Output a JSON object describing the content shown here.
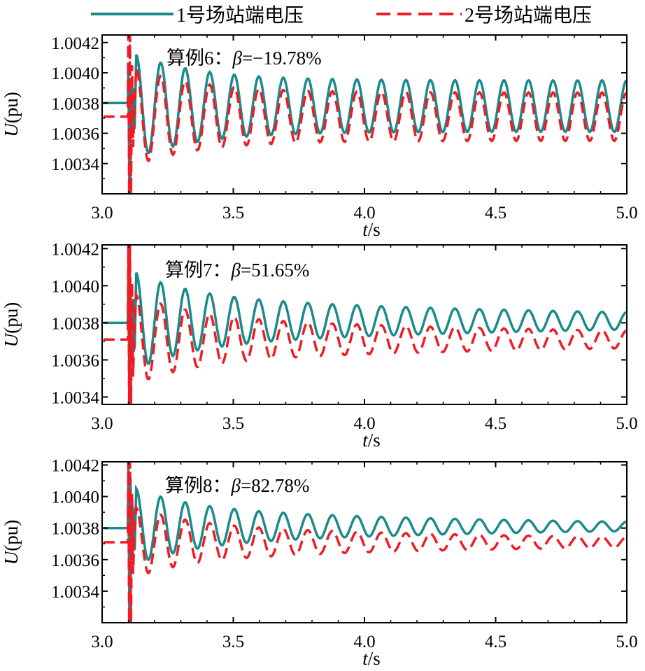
{
  "legend": {
    "items": [
      {
        "label": "1号场站端电压",
        "color": "#1a8a8a",
        "style": "solid"
      },
      {
        "label": "2号场站端电压",
        "color": "#ee1c25",
        "style": "dashed"
      }
    ]
  },
  "chart_data": [
    {
      "type": "line",
      "annotation": {
        "prefix": "算例6：",
        "symbol": "β",
        "value": "=−19.78%"
      },
      "xlabel": {
        "var": "t",
        "unit": "/s"
      },
      "ylabel": {
        "var": "U",
        "unit": "(pu)"
      },
      "xlim": [
        3.0,
        5.0
      ],
      "ylim": [
        1.0032,
        1.00425
      ],
      "xticks": [
        3.0,
        3.5,
        4.0,
        4.5,
        5.0
      ],
      "xtick_labels": [
        "3.0",
        "3.5",
        "4.0",
        "4.5",
        "5.0"
      ],
      "yticks": [
        1.0034,
        1.0036,
        1.0038,
        1.004,
        1.0042
      ],
      "ytick_labels": [
        "1.0034",
        "1.0036",
        "1.0038",
        "1.0040",
        "1.0042"
      ],
      "disturbance_time": 3.1,
      "oscillation_frequency_hz": 10.7,
      "series": [
        {
          "name": "1号场站端电压",
          "color": "#1a8a8a",
          "dash": false,
          "pre": 1.0038,
          "mean": 1.00378,
          "amp": 0.00017,
          "decay": 0.0,
          "spike_high": 1.00405,
          "spike_low": 1.0032
        },
        {
          "name": "2号场站端电压",
          "color": "#ee1c25",
          "dash": true,
          "pre": 1.00371,
          "mean": 1.00371,
          "amp": 0.00016,
          "decay": 0.0,
          "spike_high": 1.00425,
          "spike_low": 1.0032
        }
      ],
      "grid": false
    },
    {
      "type": "line",
      "annotation": {
        "prefix": "算例7：",
        "symbol": "β",
        "value": "=51.65%"
      },
      "xlabel": {
        "var": "t",
        "unit": "/s"
      },
      "ylabel": {
        "var": "U",
        "unit": "(pu)"
      },
      "xlim": [
        3.0,
        5.0
      ],
      "ylim": [
        1.00336,
        1.00422
      ],
      "xticks": [
        3.0,
        3.5,
        4.0,
        4.5,
        5.0
      ],
      "xtick_labels": [
        "3.0",
        "3.5",
        "4.0",
        "4.5",
        "5.0"
      ],
      "yticks": [
        1.0034,
        1.0036,
        1.0038,
        1.004,
        1.0042
      ],
      "ytick_labels": [
        "1.0034",
        "1.0036",
        "1.0038",
        "1.0040",
        "1.0042"
      ],
      "disturbance_time": 3.1,
      "oscillation_frequency_hz": 10.7,
      "series": [
        {
          "name": "1号场站端电压",
          "color": "#1a8a8a",
          "dash": false,
          "pre": 1.0038,
          "mean": 1.00381,
          "amp": 0.00013,
          "decay": 0.55,
          "spike_high": 1.0041,
          "spike_low": 1.00336
        },
        {
          "name": "2号场站端电压",
          "color": "#ee1c25",
          "dash": true,
          "pre": 1.00371,
          "mean": 1.00371,
          "amp": 0.00012,
          "decay": 0.5,
          "spike_high": 1.00422,
          "spike_low": 1.00336
        }
      ],
      "grid": false
    },
    {
      "type": "line",
      "annotation": {
        "prefix": "算例8：",
        "symbol": "β",
        "value": "=82.78%"
      },
      "xlabel": {
        "var": "t",
        "unit": "/s"
      },
      "ylabel": {
        "var": "U",
        "unit": "(pu)"
      },
      "xlim": [
        3.0,
        5.0
      ],
      "ylim": [
        1.0032,
        1.00422
      ],
      "xticks": [
        3.0,
        3.5,
        4.0,
        4.5,
        5.0
      ],
      "xtick_labels": [
        "3.0",
        "3.5",
        "4.0",
        "4.5",
        "5.0"
      ],
      "yticks": [
        1.0034,
        1.0036,
        1.0038,
        1.004,
        1.0042
      ],
      "ytick_labels": [
        "1.0034",
        "1.0036",
        "1.0038",
        "1.0040",
        "1.0042"
      ],
      "disturbance_time": 3.1,
      "oscillation_frequency_hz": 10.7,
      "series": [
        {
          "name": "1号场站端电压",
          "color": "#1a8a8a",
          "dash": false,
          "pre": 1.0038,
          "mean": 1.00381,
          "amp": 0.00012,
          "decay": 0.75,
          "spike_high": 1.00422,
          "spike_low": 1.0032
        },
        {
          "name": "2号场站端电压",
          "color": "#ee1c25",
          "dash": true,
          "pre": 1.00371,
          "mean": 1.00371,
          "amp": 0.00011,
          "decay": 0.65,
          "spike_high": 1.00422,
          "spike_low": 1.0032
        }
      ],
      "grid": false
    }
  ]
}
